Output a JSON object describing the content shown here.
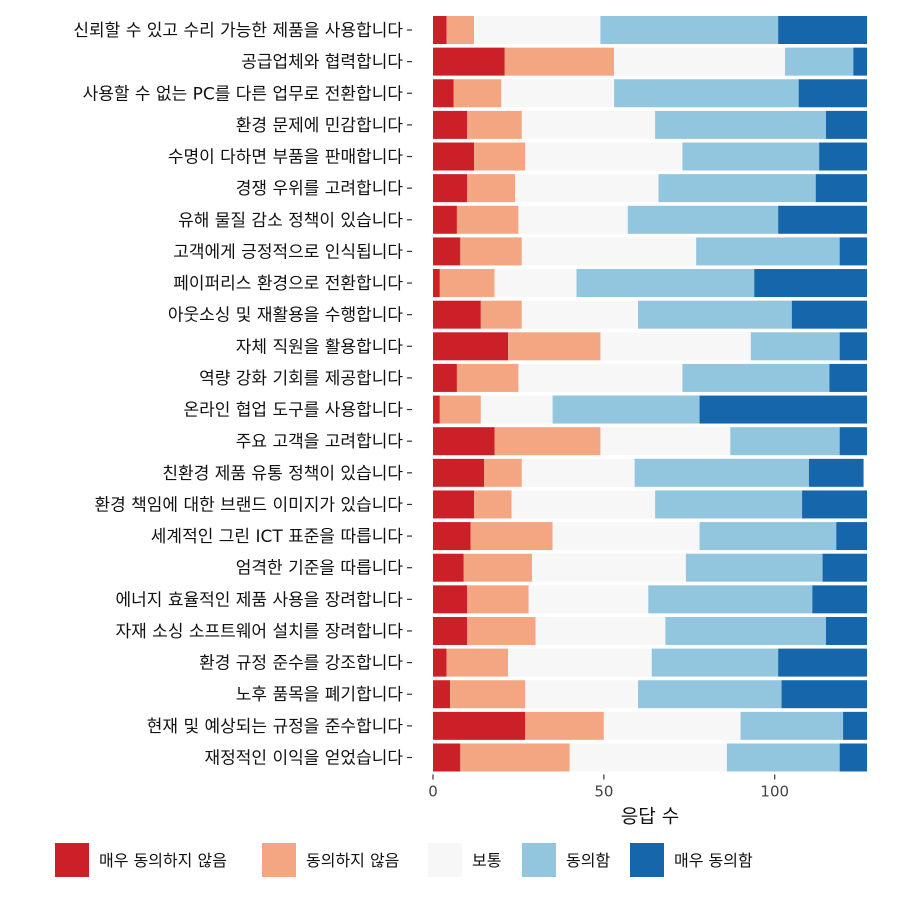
{
  "chart_data": {
    "type": "bar",
    "orientation": "horizontal",
    "stacked": true,
    "categories": [
      "신뢰할 수 있고 수리 가능한 제품을 사용합니다",
      "공급업체와 협력합니다",
      "사용할 수 없는 PC를 다른 업무로 전환합니다",
      "환경 문제에 민감합니다",
      "수명이 다하면 부품을 판매합니다",
      "경쟁 우위를 고려합니다",
      "유해 물질 감소 정책이 있습니다",
      "고객에게 긍정적으로 인식됩니다",
      "페이퍼리스 환경으로 전환합니다",
      "아웃소싱 및 재활용을 수행합니다",
      "자체 직원을 활용합니다",
      "역량 강화 기회를 제공합니다",
      "온라인 협업 도구를 사용합니다",
      "주요 고객을 고려합니다",
      "친환경 제품 유통 정책이 있습니다",
      "환경 책임에 대한 브랜드 이미지가 있습니다",
      "세계적인 그린 ICT 표준을 따릅니다",
      "엄격한 기준을 따릅니다",
      "에너지 효율적인 제품 사용을 장려합니다",
      "자재 소싱 소프트웨어 설치를 장려합니다",
      "환경 규정 준수를 강조합니다",
      "노후 품목을 폐기합니다",
      "현재 및 예상되는 규정을 준수합니다",
      "재정적인 이익을 얻었습니다"
    ],
    "series": [
      {
        "name": "매우 동의하지 않음",
        "color": "#cb2027",
        "values": [
          4,
          21,
          6,
          10,
          12,
          10,
          7,
          8,
          2,
          14,
          22,
          7,
          2,
          18,
          15,
          12,
          11,
          9,
          10,
          10,
          4,
          5,
          27,
          8
        ]
      },
      {
        "name": "동의하지 않음",
        "color": "#f4a582",
        "values": [
          8,
          32,
          14,
          16,
          15,
          14,
          18,
          18,
          16,
          12,
          27,
          18,
          12,
          31,
          11,
          11,
          24,
          20,
          18,
          20,
          18,
          22,
          23,
          32
        ]
      },
      {
        "name": "보통",
        "color": "#f7f7f7",
        "values": [
          37,
          50,
          33,
          39,
          46,
          42,
          32,
          51,
          24,
          34,
          44,
          48,
          21,
          38,
          33,
          42,
          43,
          45,
          35,
          38,
          42,
          33,
          40,
          46
        ]
      },
      {
        "name": "동의함",
        "color": "#92c5de",
        "values": [
          52,
          20,
          54,
          50,
          40,
          46,
          44,
          42,
          52,
          45,
          26,
          43,
          43,
          32,
          51,
          43,
          40,
          40,
          48,
          47,
          37,
          42,
          30,
          33
        ]
      },
      {
        "name": "매우 동의함",
        "color": "#1666ab",
        "values": [
          26,
          4,
          20,
          12,
          14,
          15,
          26,
          8,
          33,
          22,
          8,
          11,
          49,
          8,
          16,
          19,
          9,
          13,
          16,
          12,
          26,
          25,
          7,
          8
        ]
      }
    ],
    "xlabel": "응답 수",
    "ylabel": "",
    "xlim": [
      0,
      127
    ],
    "xticks": [
      0,
      50,
      100
    ],
    "grid": false,
    "legend_position": "bottom"
  }
}
